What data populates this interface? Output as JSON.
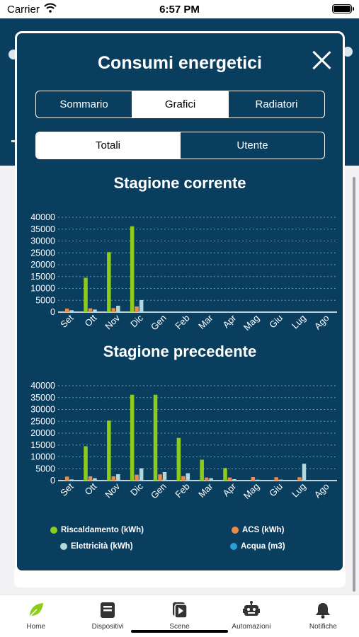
{
  "status_bar": {
    "carrier": "Carrier",
    "time": "6:57 PM"
  },
  "modal": {
    "title": "Consumi energetici",
    "main_tabs": [
      {
        "label": "Sommario",
        "active": false
      },
      {
        "label": "Grafici",
        "active": true
      },
      {
        "label": "Radiatori",
        "active": false
      }
    ],
    "sub_tabs": [
      {
        "label": "Totali",
        "active": true
      },
      {
        "label": "Utente",
        "active": false
      }
    ]
  },
  "chart_data": [
    {
      "type": "bar",
      "title": "Stagione corrente",
      "categories": [
        "Set",
        "Ott",
        "Nov",
        "Dic",
        "Gen",
        "Feb",
        "Mar",
        "Apr",
        "Mag",
        "Giu",
        "Lug",
        "Ago"
      ],
      "ylim": [
        0,
        40000
      ],
      "yticks": [
        0,
        5000,
        10000,
        15000,
        20000,
        25000,
        30000,
        35000,
        40000
      ],
      "grid": true,
      "series": [
        {
          "name": "Riscaldamento (kWh)",
          "color": "#8ccc1b",
          "values": [
            0,
            14500,
            25300,
            36200,
            0,
            0,
            0,
            0,
            0,
            0,
            0,
            0
          ]
        },
        {
          "name": "ACS (kWh)",
          "color": "#ee8a4a",
          "values": [
            1500,
            1600,
            1700,
            2400,
            0,
            0,
            0,
            0,
            0,
            0,
            0,
            0
          ]
        },
        {
          "name": "Elettricità (kWh)",
          "color": "#b4d8d8",
          "values": [
            800,
            1100,
            2700,
            5100,
            0,
            0,
            0,
            0,
            0,
            0,
            0,
            0
          ]
        },
        {
          "name": "Acqua (m3)",
          "color": "#2a9fd8",
          "values": [
            0,
            0,
            0,
            0,
            0,
            0,
            0,
            0,
            0,
            0,
            0,
            0
          ]
        }
      ]
    },
    {
      "type": "bar",
      "title": "Stagione precedente",
      "categories": [
        "Set",
        "Ott",
        "Nov",
        "Dic",
        "Gen",
        "Feb",
        "Mar",
        "Apr",
        "Mag",
        "Giu",
        "Lug",
        "Ago"
      ],
      "ylim": [
        0,
        40000
      ],
      "yticks": [
        0,
        5000,
        10000,
        15000,
        20000,
        25000,
        30000,
        35000,
        40000
      ],
      "grid": true,
      "series": [
        {
          "name": "Riscaldamento (kWh)",
          "color": "#8ccc1b",
          "values": [
            0,
            14500,
            25300,
            36200,
            36200,
            18000,
            8800,
            5300,
            0,
            0,
            0,
            0
          ]
        },
        {
          "name": "ACS (kWh)",
          "color": "#ee8a4a",
          "values": [
            1700,
            1800,
            1800,
            2500,
            2600,
            1900,
            1300,
            1300,
            1500,
            1400,
            1400,
            0
          ]
        },
        {
          "name": "Elettricità (kWh)",
          "color": "#b4d8d8",
          "values": [
            500,
            1000,
            2700,
            5200,
            3600,
            3100,
            1000,
            600,
            400,
            400,
            7100,
            0
          ]
        },
        {
          "name": "Acqua (m3)",
          "color": "#2a9fd8",
          "values": [
            0,
            0,
            0,
            0,
            0,
            0,
            0,
            0,
            0,
            0,
            0,
            0
          ]
        }
      ]
    }
  ],
  "legend": {
    "placement": "bottom",
    "items": [
      {
        "label": "Riscaldamento (kWh)",
        "color": "#8ccc1b"
      },
      {
        "label": "ACS (kWh)",
        "color": "#ee8a4a"
      },
      {
        "label": "Elettricità (kWh)",
        "color": "#b4d8d8"
      },
      {
        "label": "Acqua (m3)",
        "color": "#2a9fd8"
      }
    ]
  },
  "tab_bar": {
    "items": [
      {
        "label": "Home",
        "icon": "leaf-icon",
        "active": true
      },
      {
        "label": "Dispositivi",
        "icon": "devices-icon",
        "active": false
      },
      {
        "label": "Scene",
        "icon": "scene-icon",
        "active": false
      },
      {
        "label": "Automazioni",
        "icon": "robot-icon",
        "active": false
      },
      {
        "label": "Notifiche",
        "icon": "bell-icon",
        "active": false
      }
    ]
  },
  "colors": {
    "primary": "#0a3e5f",
    "accent": "#8ccc1b"
  }
}
